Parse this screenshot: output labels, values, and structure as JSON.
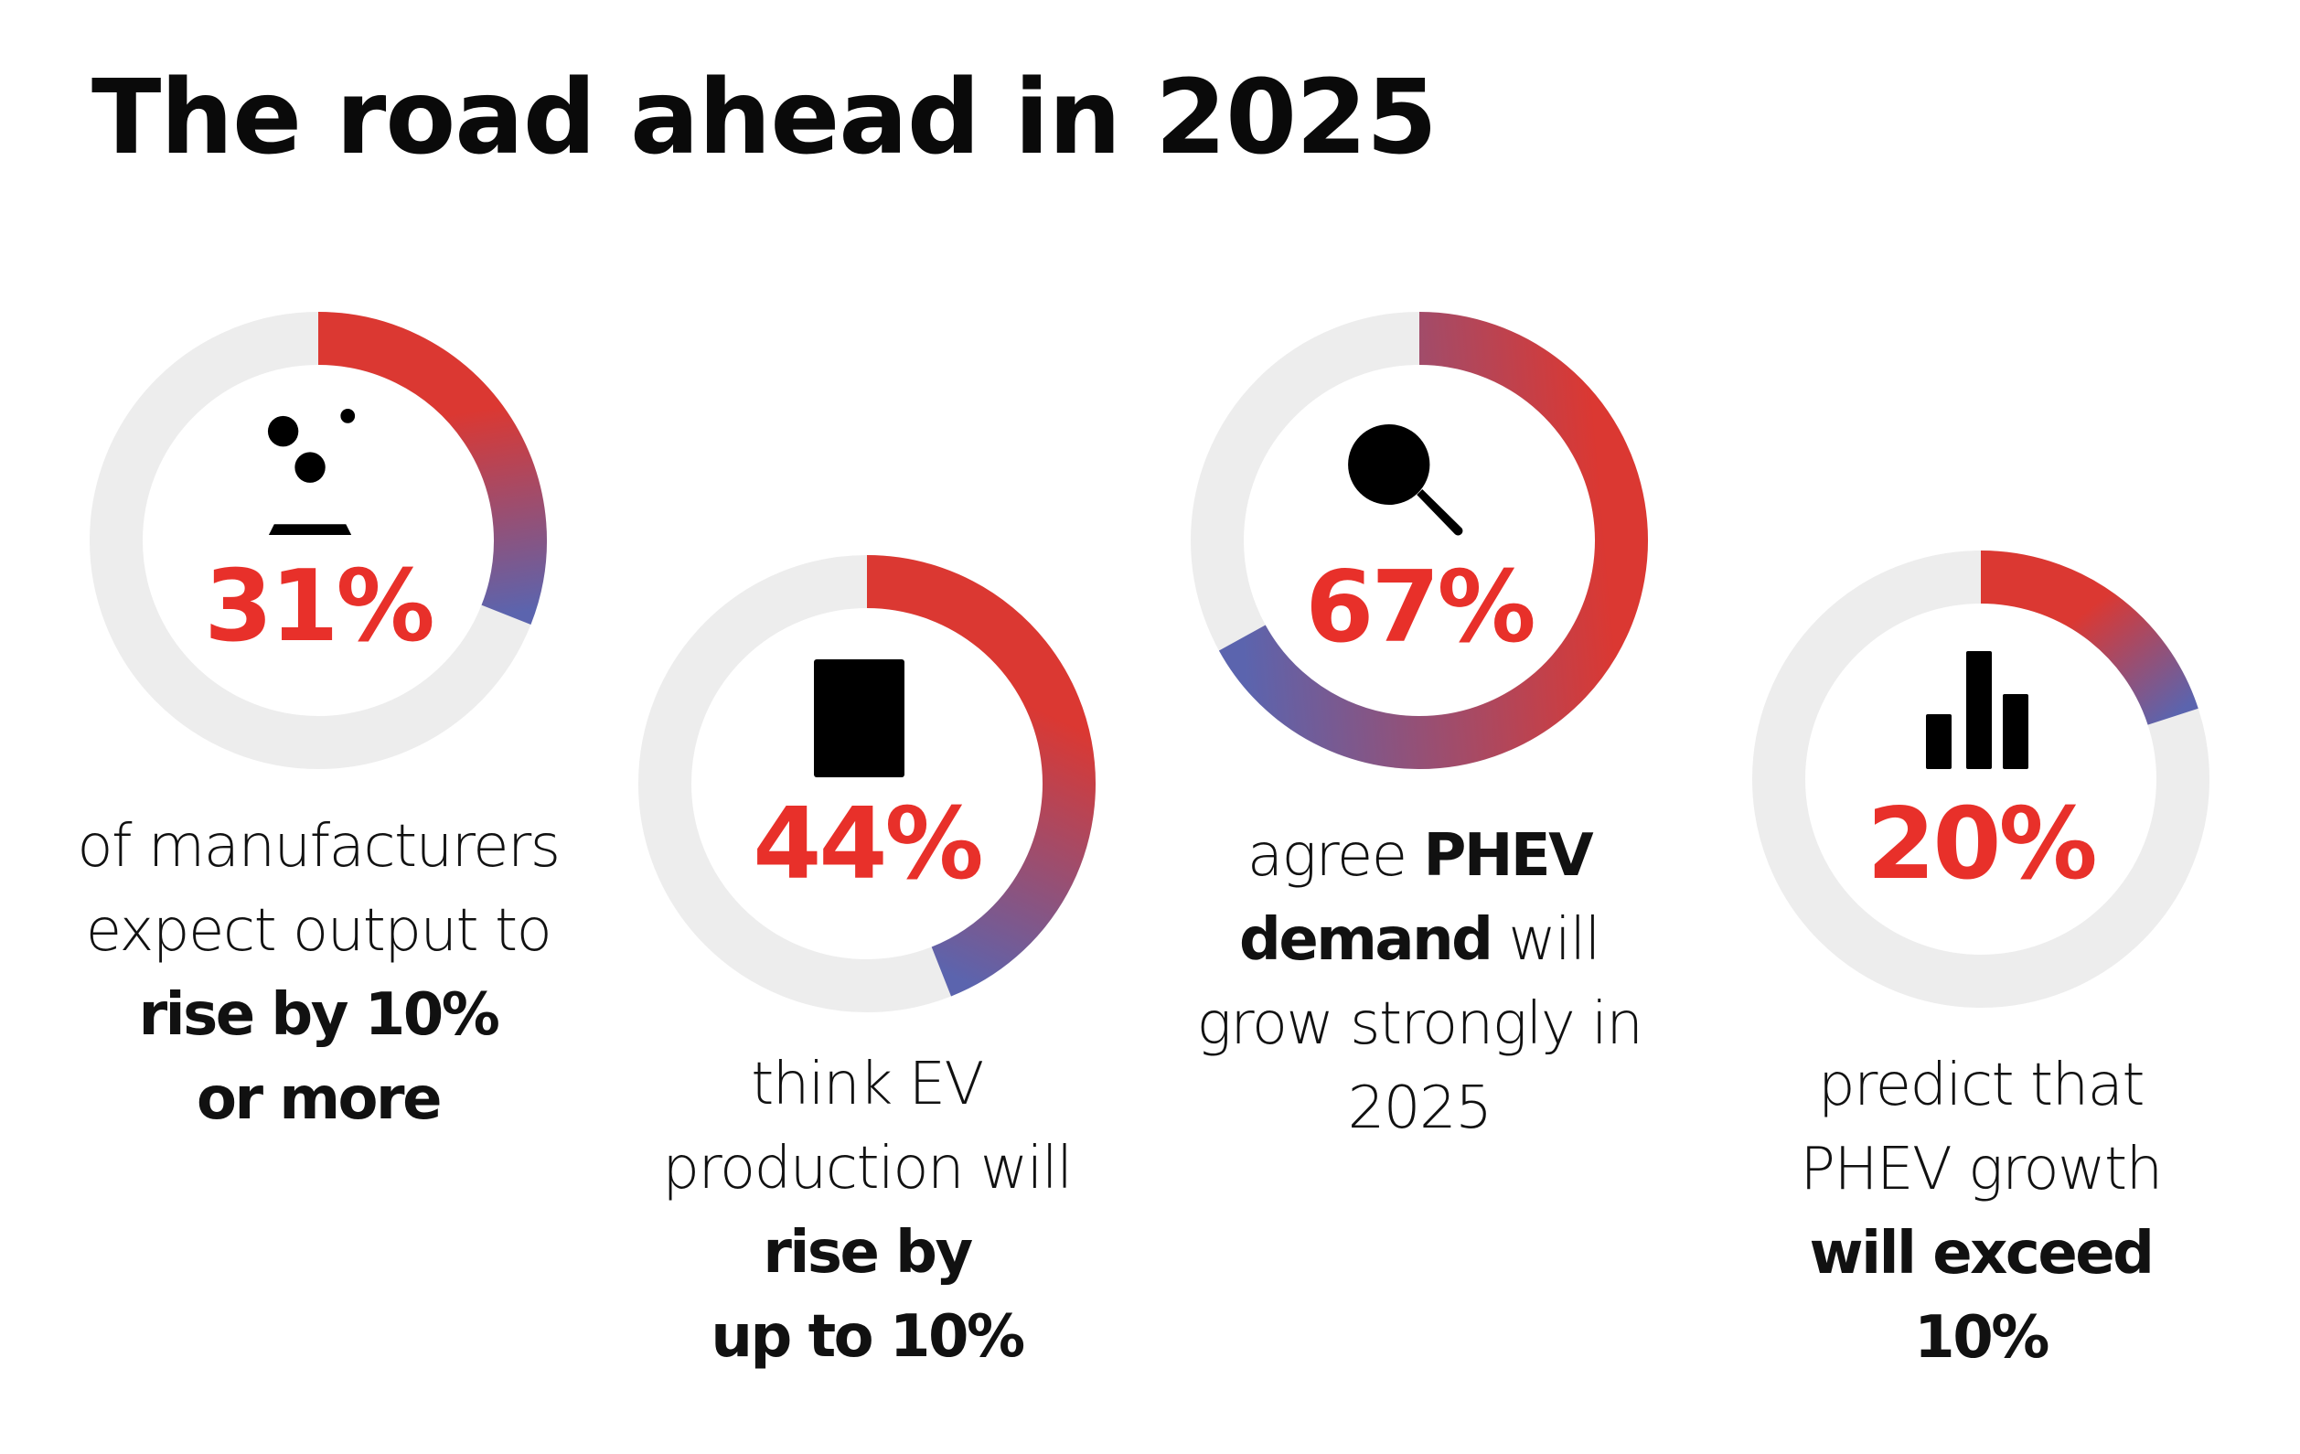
{
  "title": "The road ahead in 2025",
  "colors": {
    "arc_start": "#DB3832",
    "arc_end": "#5B64AE",
    "track": "#EDEDED",
    "percent_text": "#E8302A",
    "caption_text": "#111111"
  },
  "chart_data": {
    "type": "pie",
    "subtype": "donut-progress",
    "title": "The road ahead in 2025",
    "unit": "%",
    "range": [
      0,
      100
    ],
    "items": [
      {
        "label": "31%",
        "value": 31,
        "icon": "robot-arm-icon",
        "caption": [
          [
            {
              "text": "of manufacturers",
              "bold": false
            }
          ],
          [
            {
              "text": "expect output to",
              "bold": false
            }
          ],
          [
            {
              "text": "rise by 10%",
              "bold": true
            }
          ],
          [
            {
              "text": "or more",
              "bold": true
            }
          ]
        ]
      },
      {
        "label": "44%",
        "value": 44,
        "icon": "control-cabinet-icon",
        "caption": [
          [
            {
              "text": "think EV",
              "bold": false
            }
          ],
          [
            {
              "text": "production will",
              "bold": false
            }
          ],
          [
            {
              "text": "rise by",
              "bold": true
            }
          ],
          [
            {
              "text": "up to 10%",
              "bold": true
            }
          ]
        ]
      },
      {
        "label": "67%",
        "value": 67,
        "icon": "dollar-magnifier-icon",
        "caption": [
          [
            {
              "text": "agree ",
              "bold": false
            },
            {
              "text": "PHEV",
              "bold": true
            }
          ],
          [
            {
              "text": "demand",
              "bold": true
            },
            {
              "text": " will",
              "bold": false
            }
          ],
          [
            {
              "text": "grow strongly in",
              "bold": false
            }
          ],
          [
            {
              "text": "2025",
              "bold": false
            }
          ]
        ]
      },
      {
        "label": "20%",
        "value": 20,
        "icon": "bar-chart-icon",
        "caption": [
          [
            {
              "text": "predict that",
              "bold": false
            }
          ],
          [
            {
              "text": "PHEV growth",
              "bold": false
            }
          ],
          [
            {
              "text": "will exceed",
              "bold": true
            }
          ],
          [
            {
              "text": "10%",
              "bold": true
            }
          ]
        ]
      }
    ]
  }
}
